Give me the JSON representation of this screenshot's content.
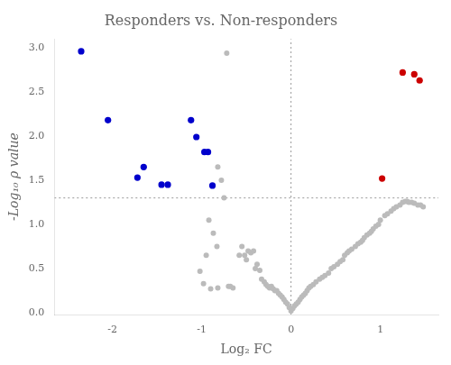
{
  "chart_data": {
    "type": "scatter",
    "title": "Responders vs. Non-responders",
    "x_label": "Log₂ FC",
    "y_label": "-Log₁₀ ρ value",
    "xlim": [
      -2.65,
      1.65
    ],
    "ylim": [
      -0.02,
      3.1
    ],
    "xticks": [
      -2,
      -1,
      0,
      1
    ],
    "yticks": [
      {
        "value": 0.0,
        "label": "0.0"
      },
      0.5,
      {
        "value": 1.0,
        "label": "1.0"
      },
      1.5,
      {
        "value": 2.0,
        "label": "2.0"
      },
      2.5,
      {
        "value": 3.0,
        "label": "3.0"
      }
    ],
    "grid": false,
    "reference_lines": [
      {
        "axis": "y",
        "value": 1.3,
        "color": "#999999",
        "line_style": "dotted"
      },
      {
        "axis": "x",
        "value": 0.0,
        "color": "#999999",
        "line_style": "dotted"
      }
    ],
    "series": [
      {
        "color": "#BBBBBB",
        "points": [
          [
            -0.72,
            2.94
          ],
          [
            -0.82,
            1.65
          ],
          [
            -0.78,
            1.5
          ],
          [
            -0.75,
            1.3
          ],
          [
            -0.92,
            1.05
          ],
          [
            -0.87,
            0.9
          ],
          [
            -0.83,
            0.75
          ],
          [
            -0.95,
            0.65
          ],
          [
            -1.02,
            0.47
          ],
          [
            -0.98,
            0.33
          ],
          [
            -0.9,
            0.27
          ],
          [
            -0.82,
            0.28
          ],
          [
            -0.7,
            0.3
          ],
          [
            -0.68,
            0.3
          ],
          [
            -0.65,
            0.28
          ],
          [
            -0.58,
            0.65
          ],
          [
            -0.55,
            0.75
          ],
          [
            -0.52,
            0.65
          ],
          [
            -0.5,
            0.6
          ],
          [
            -0.48,
            0.7
          ],
          [
            -0.45,
            0.68
          ],
          [
            -0.42,
            0.7
          ],
          [
            -0.4,
            0.5
          ],
          [
            -0.38,
            0.55
          ],
          [
            -0.35,
            0.48
          ],
          [
            -0.33,
            0.38
          ],
          [
            -0.3,
            0.35
          ],
          [
            -0.28,
            0.32
          ],
          [
            -0.26,
            0.3
          ],
          [
            -0.24,
            0.28
          ],
          [
            -0.22,
            0.3
          ],
          [
            -0.2,
            0.27
          ],
          [
            -0.18,
            0.25
          ],
          [
            -0.16,
            0.25
          ],
          [
            -0.14,
            0.22
          ],
          [
            -0.12,
            0.2
          ],
          [
            -0.1,
            0.18
          ],
          [
            -0.08,
            0.15
          ],
          [
            -0.06,
            0.12
          ],
          [
            -0.04,
            0.1
          ],
          [
            -0.02,
            0.06
          ],
          [
            0.0,
            0.02
          ],
          [
            0.02,
            0.05
          ],
          [
            0.04,
            0.08
          ],
          [
            0.06,
            0.1
          ],
          [
            0.08,
            0.12
          ],
          [
            0.1,
            0.15
          ],
          [
            0.12,
            0.18
          ],
          [
            0.14,
            0.2
          ],
          [
            0.16,
            0.22
          ],
          [
            0.18,
            0.25
          ],
          [
            0.2,
            0.28
          ],
          [
            0.22,
            0.3
          ],
          [
            0.25,
            0.32
          ],
          [
            0.28,
            0.35
          ],
          [
            0.32,
            0.38
          ],
          [
            0.35,
            0.4
          ],
          [
            0.38,
            0.42
          ],
          [
            0.42,
            0.45
          ],
          [
            0.45,
            0.5
          ],
          [
            0.48,
            0.52
          ],
          [
            0.52,
            0.55
          ],
          [
            0.55,
            0.58
          ],
          [
            0.58,
            0.6
          ],
          [
            0.6,
            0.65
          ],
          [
            0.63,
            0.68
          ],
          [
            0.65,
            0.7
          ],
          [
            0.68,
            0.72
          ],
          [
            0.72,
            0.75
          ],
          [
            0.75,
            0.78
          ],
          [
            0.78,
            0.8
          ],
          [
            0.8,
            0.82
          ],
          [
            0.82,
            0.85
          ],
          [
            0.85,
            0.88
          ],
          [
            0.88,
            0.9
          ],
          [
            0.9,
            0.92
          ],
          [
            0.92,
            0.95
          ],
          [
            0.95,
            0.98
          ],
          [
            0.98,
            1.0
          ],
          [
            1.0,
            1.05
          ],
          [
            1.05,
            1.1
          ],
          [
            1.08,
            1.12
          ],
          [
            1.12,
            1.15
          ],
          [
            1.15,
            1.18
          ],
          [
            1.18,
            1.2
          ],
          [
            1.22,
            1.22
          ],
          [
            1.25,
            1.25
          ],
          [
            1.28,
            1.26
          ],
          [
            1.3,
            1.26
          ],
          [
            1.32,
            1.25
          ],
          [
            1.35,
            1.25
          ],
          [
            1.38,
            1.24
          ],
          [
            1.42,
            1.22
          ],
          [
            1.45,
            1.22
          ],
          [
            1.48,
            1.2
          ]
        ]
      },
      {
        "color": "#0000CC",
        "points": [
          [
            -2.35,
            2.96
          ],
          [
            -2.05,
            2.18
          ],
          [
            -1.72,
            1.53
          ],
          [
            -1.65,
            1.65
          ],
          [
            -1.45,
            1.45
          ],
          [
            -1.38,
            1.45
          ],
          [
            -1.12,
            2.18
          ],
          [
            -1.06,
            1.99
          ],
          [
            -0.97,
            1.82
          ],
          [
            -0.93,
            1.82
          ],
          [
            -0.88,
            1.44
          ]
        ]
      },
      {
        "color": "#CC0000",
        "points": [
          [
            1.02,
            1.52
          ],
          [
            1.25,
            2.72
          ],
          [
            1.38,
            2.7
          ],
          [
            1.44,
            2.63
          ]
        ]
      }
    ]
  }
}
